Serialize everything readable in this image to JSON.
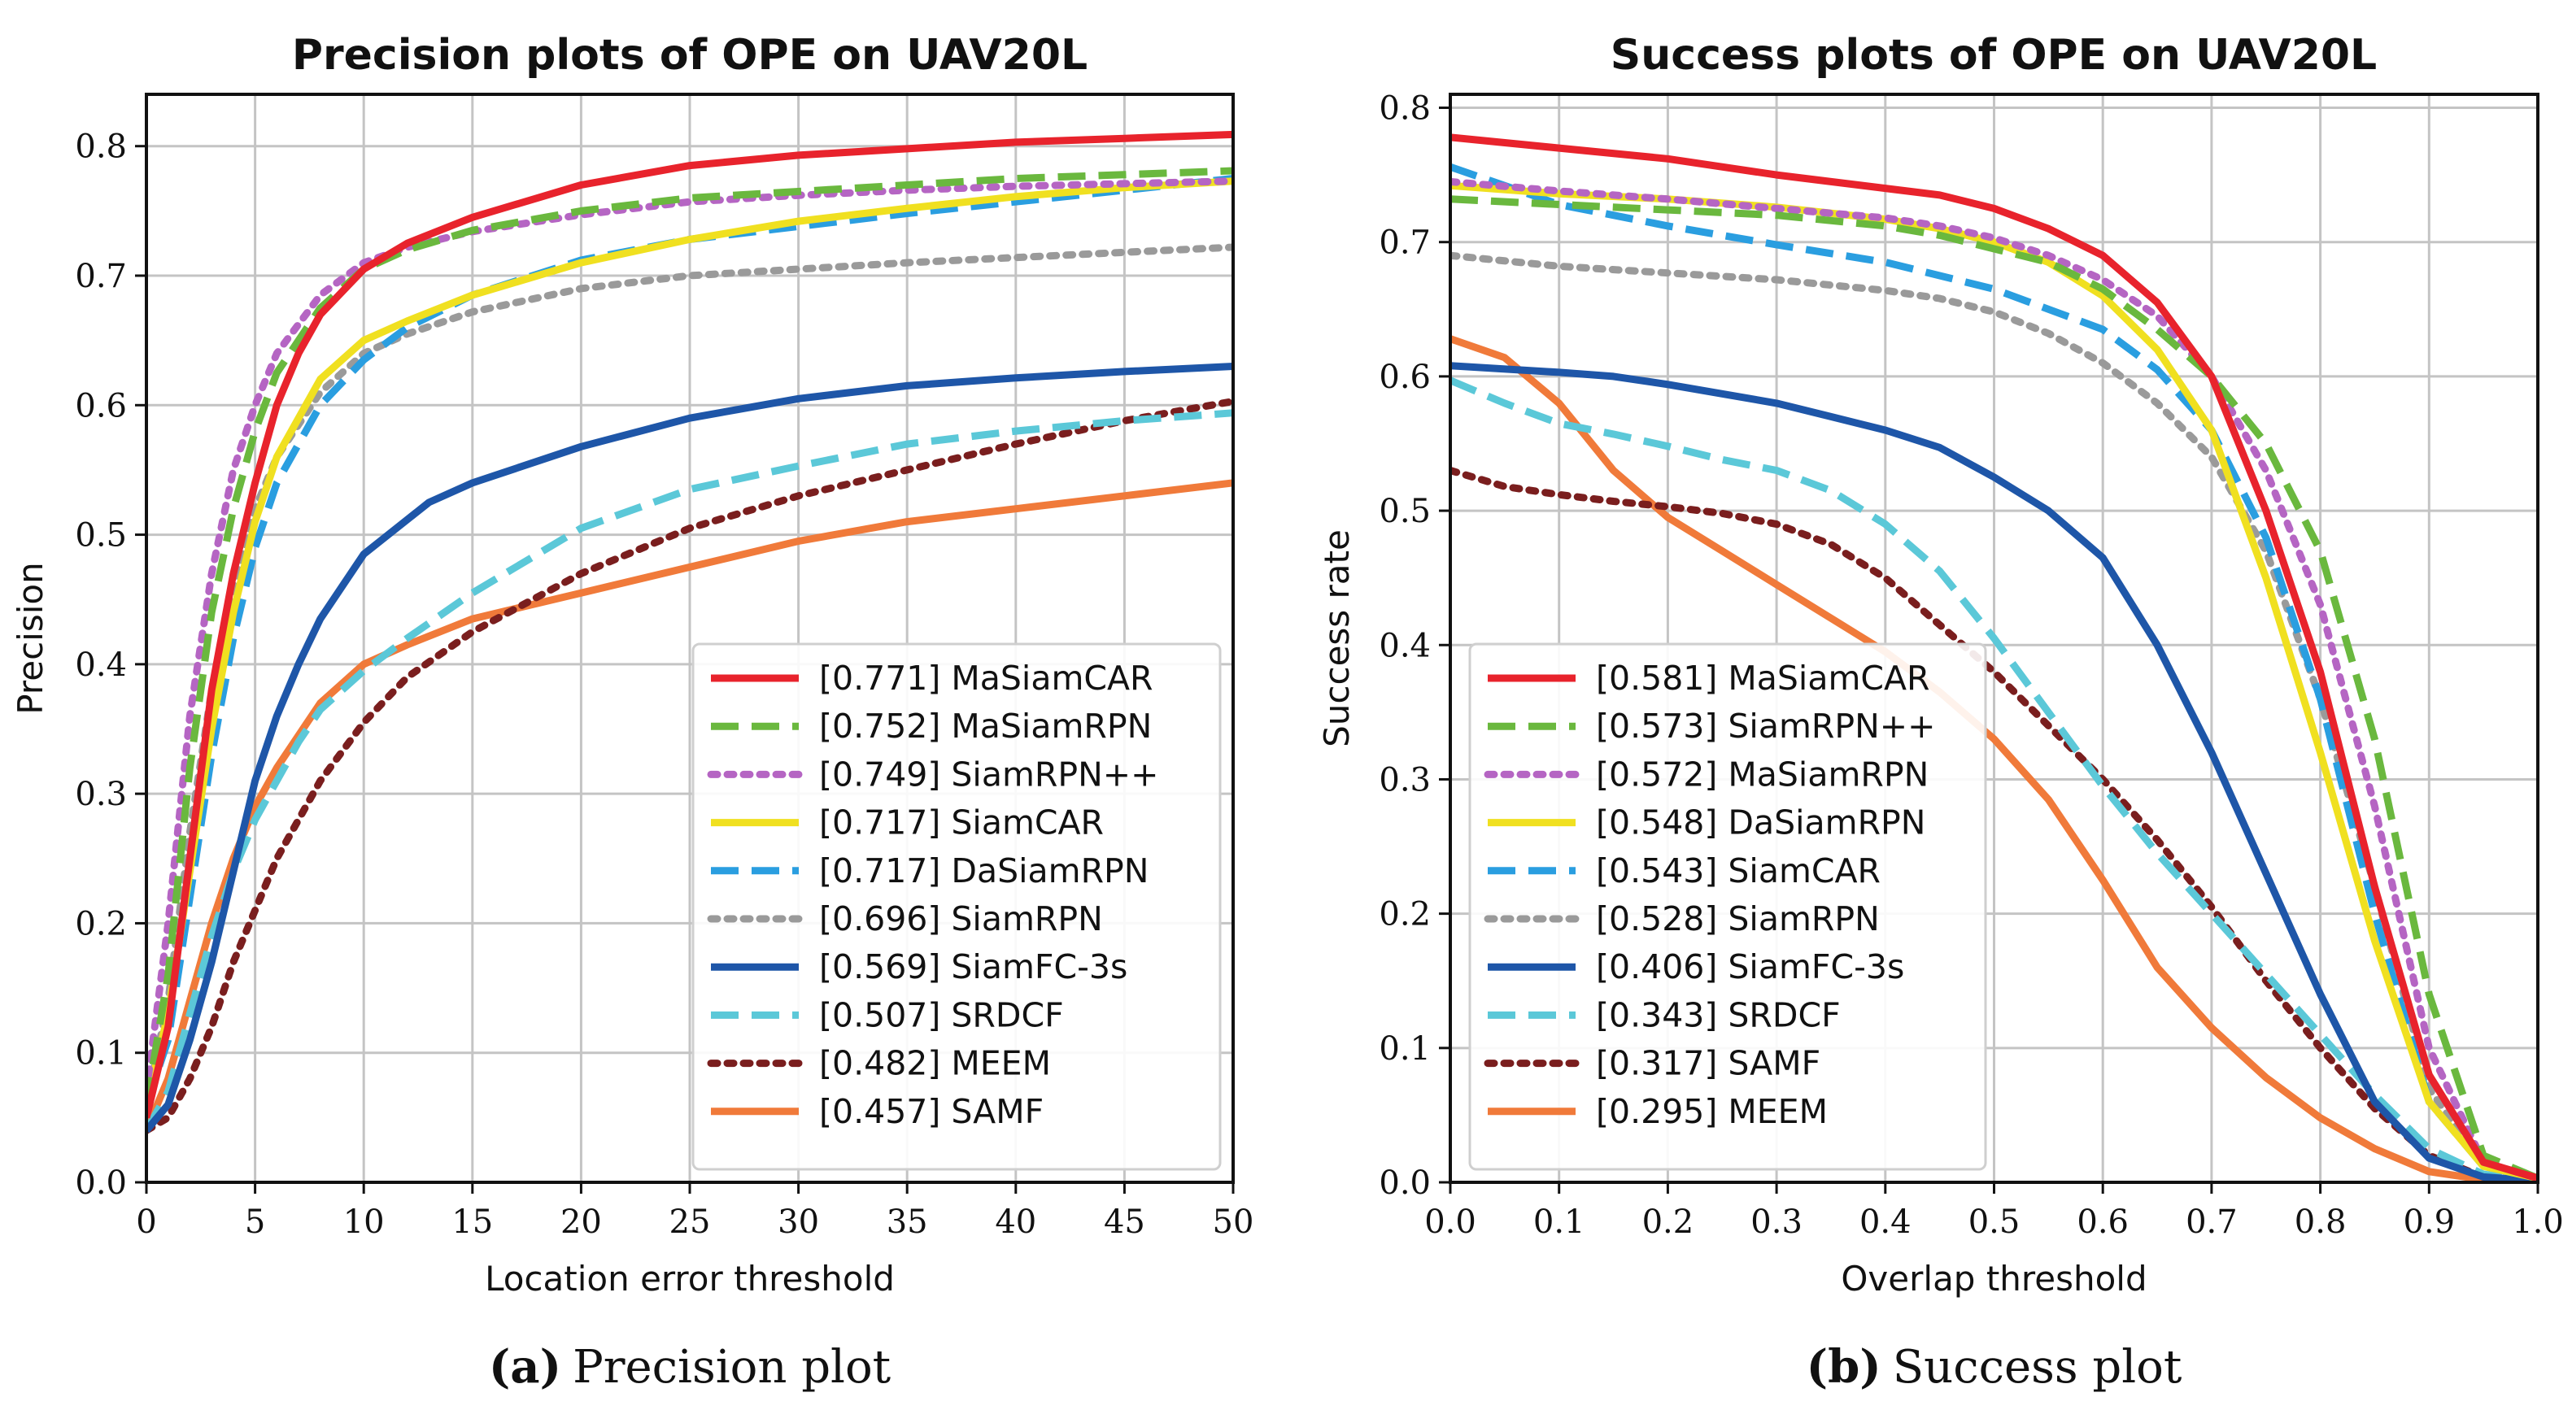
{
  "chart_data": [
    {
      "type": "line",
      "title": "Precision plots of OPE on UAV20L",
      "xlabel": "Location error threshold",
      "ylabel": "Precision",
      "xlim": [
        0,
        50
      ],
      "ylim": [
        0,
        0.84
      ],
      "xticks": [
        "0",
        "5",
        "10",
        "15",
        "20",
        "25",
        "30",
        "35",
        "40",
        "45",
        "50"
      ],
      "yticks": [
        "0.0",
        "0.1",
        "0.2",
        "0.3",
        "0.4",
        "0.5",
        "0.6",
        "0.7",
        "0.8"
      ],
      "grid": true,
      "legend_position": "lower-right",
      "caption_letter": "(a)",
      "caption_text": "Precision plot",
      "series": [
        {
          "name": "MaSiamCAR",
          "legend": "[0.771] MaSiamCAR",
          "color": "#e8232c",
          "dash": "solid",
          "x": [
            0,
            1,
            2,
            3,
            4,
            5,
            6,
            7,
            8,
            10,
            12,
            15,
            20,
            25,
            30,
            35,
            40,
            45,
            50
          ],
          "y": [
            0.05,
            0.12,
            0.25,
            0.38,
            0.47,
            0.54,
            0.6,
            0.64,
            0.67,
            0.705,
            0.725,
            0.745,
            0.77,
            0.785,
            0.793,
            0.798,
            0.803,
            0.806,
            0.809
          ]
        },
        {
          "name": "MaSiamRPN",
          "legend": "[0.752] MaSiamRPN",
          "color": "#6ab83e",
          "dash": "dashed",
          "x": [
            0,
            1,
            2,
            3,
            4,
            5,
            6,
            8,
            10,
            12,
            15,
            20,
            25,
            30,
            35,
            40,
            45,
            50
          ],
          "y": [
            0.06,
            0.16,
            0.32,
            0.44,
            0.52,
            0.58,
            0.625,
            0.675,
            0.705,
            0.72,
            0.735,
            0.75,
            0.76,
            0.765,
            0.77,
            0.775,
            0.778,
            0.781
          ]
        },
        {
          "name": "SiamRPN++",
          "legend": "[0.749] SiamRPN++",
          "color": "#b565c3",
          "dash": "dotted",
          "x": [
            0,
            1,
            2,
            3,
            4,
            5,
            6,
            8,
            10,
            12,
            15,
            20,
            25,
            30,
            35,
            40,
            45,
            50
          ],
          "y": [
            0.07,
            0.2,
            0.36,
            0.47,
            0.55,
            0.6,
            0.64,
            0.685,
            0.71,
            0.722,
            0.734,
            0.747,
            0.757,
            0.762,
            0.766,
            0.769,
            0.771,
            0.773
          ]
        },
        {
          "name": "SiamCAR",
          "legend": "[0.717] SiamCAR",
          "color": "#f0e020",
          "dash": "solid",
          "x": [
            0,
            1,
            2,
            3,
            4,
            5,
            6,
            8,
            10,
            12,
            15,
            20,
            25,
            30,
            35,
            40,
            45,
            50
          ],
          "y": [
            0.06,
            0.13,
            0.24,
            0.35,
            0.44,
            0.51,
            0.56,
            0.62,
            0.65,
            0.665,
            0.685,
            0.71,
            0.728,
            0.742,
            0.752,
            0.761,
            0.768,
            0.773
          ]
        },
        {
          "name": "DaSiamRPN",
          "legend": "[0.717] DaSiamRPN",
          "color": "#2a9ee0",
          "dash": "dashed",
          "x": [
            0,
            1,
            2,
            3,
            4,
            5,
            6,
            8,
            10,
            12,
            15,
            20,
            25,
            30,
            35,
            40,
            45,
            50
          ],
          "y": [
            0.06,
            0.11,
            0.22,
            0.33,
            0.42,
            0.49,
            0.54,
            0.6,
            0.635,
            0.66,
            0.685,
            0.712,
            0.728,
            0.738,
            0.748,
            0.757,
            0.766,
            0.775
          ]
        },
        {
          "name": "SiamRPN",
          "legend": "[0.696] SiamRPN",
          "color": "#9a9a9a",
          "dash": "dotted",
          "x": [
            0,
            1,
            2,
            3,
            4,
            5,
            6,
            8,
            10,
            12,
            15,
            20,
            25,
            30,
            35,
            40,
            45,
            50
          ],
          "y": [
            0.06,
            0.14,
            0.27,
            0.38,
            0.46,
            0.52,
            0.56,
            0.61,
            0.64,
            0.655,
            0.672,
            0.69,
            0.7,
            0.705,
            0.71,
            0.714,
            0.718,
            0.722
          ]
        },
        {
          "name": "SiamFC-3s",
          "legend": "[0.569] SiamFC-3s",
          "color": "#1e56a8",
          "dash": "solid",
          "x": [
            0,
            1,
            2,
            3,
            4,
            5,
            6,
            7,
            8,
            10,
            13,
            15,
            20,
            25,
            30,
            35,
            40,
            45,
            50
          ],
          "y": [
            0.04,
            0.06,
            0.11,
            0.17,
            0.24,
            0.31,
            0.36,
            0.4,
            0.435,
            0.485,
            0.525,
            0.54,
            0.568,
            0.59,
            0.605,
            0.615,
            0.621,
            0.626,
            0.63
          ]
        },
        {
          "name": "SRDCF",
          "legend": "[0.507] SRDCF",
          "color": "#5bc8d8",
          "dash": "dashed",
          "x": [
            0,
            1,
            2,
            3,
            4,
            5,
            6,
            7,
            8,
            10,
            12,
            15,
            20,
            25,
            30,
            35,
            40,
            45,
            50
          ],
          "y": [
            0.04,
            0.07,
            0.13,
            0.19,
            0.24,
            0.28,
            0.31,
            0.34,
            0.365,
            0.395,
            0.42,
            0.455,
            0.505,
            0.535,
            0.553,
            0.57,
            0.58,
            0.588,
            0.594
          ]
        },
        {
          "name": "MEEM",
          "legend": "[0.482] MEEM",
          "color": "#7a1e1e",
          "dash": "dotted",
          "x": [
            0,
            1,
            2,
            3,
            4,
            5,
            6,
            8,
            10,
            12,
            15,
            20,
            25,
            30,
            35,
            40,
            45,
            50
          ],
          "y": [
            0.04,
            0.05,
            0.08,
            0.12,
            0.17,
            0.21,
            0.25,
            0.31,
            0.355,
            0.39,
            0.425,
            0.47,
            0.505,
            0.53,
            0.55,
            0.57,
            0.588,
            0.603
          ]
        },
        {
          "name": "SAMF",
          "legend": "[0.457] SAMF",
          "color": "#f07a3a",
          "dash": "solid",
          "x": [
            0,
            1,
            2,
            3,
            4,
            5,
            6,
            7,
            8,
            10,
            12,
            15,
            20,
            25,
            30,
            35,
            40,
            45,
            50
          ],
          "y": [
            0.04,
            0.08,
            0.14,
            0.2,
            0.25,
            0.29,
            0.32,
            0.345,
            0.37,
            0.4,
            0.415,
            0.435,
            0.455,
            0.475,
            0.495,
            0.51,
            0.52,
            0.53,
            0.54
          ]
        }
      ]
    },
    {
      "type": "line",
      "title": "Success plots of OPE on UAV20L",
      "xlabel": "Overlap threshold",
      "ylabel": "Success rate",
      "xlim": [
        0,
        1
      ],
      "ylim": [
        0,
        0.81
      ],
      "xticks": [
        "0.0",
        "0.1",
        "0.2",
        "0.3",
        "0.4",
        "0.5",
        "0.6",
        "0.7",
        "0.8",
        "0.9",
        "1.0"
      ],
      "yticks": [
        "0.0",
        "0.1",
        "0.2",
        "0.3",
        "0.4",
        "0.5",
        "0.6",
        "0.7",
        "0.8"
      ],
      "grid": true,
      "legend_position": "lower-left",
      "caption_letter": "(b)",
      "caption_text": "Success plot",
      "series": [
        {
          "name": "MaSiamCAR",
          "legend": "[0.581] MaSiamCAR",
          "color": "#e8232c",
          "dash": "solid",
          "x": [
            0,
            0.1,
            0.2,
            0.3,
            0.4,
            0.45,
            0.5,
            0.55,
            0.6,
            0.65,
            0.7,
            0.75,
            0.8,
            0.85,
            0.9,
            0.95,
            1.0
          ],
          "y": [
            0.778,
            0.77,
            0.762,
            0.75,
            0.74,
            0.735,
            0.725,
            0.71,
            0.69,
            0.655,
            0.6,
            0.5,
            0.38,
            0.22,
            0.08,
            0.015,
            0.003
          ]
        },
        {
          "name": "SiamRPN++",
          "legend": "[0.573] SiamRPN++",
          "color": "#6ab83e",
          "dash": "dashed",
          "x": [
            0,
            0.1,
            0.2,
            0.3,
            0.4,
            0.45,
            0.5,
            0.55,
            0.6,
            0.65,
            0.7,
            0.75,
            0.8,
            0.85,
            0.9,
            0.95,
            1.0
          ],
          "y": [
            0.732,
            0.728,
            0.724,
            0.72,
            0.712,
            0.705,
            0.695,
            0.685,
            0.665,
            0.635,
            0.6,
            0.55,
            0.47,
            0.33,
            0.14,
            0.02,
            0.003
          ]
        },
        {
          "name": "MaSiamRPN",
          "legend": "[0.572] MaSiamRPN",
          "color": "#b565c3",
          "dash": "dotted",
          "x": [
            0,
            0.1,
            0.2,
            0.3,
            0.4,
            0.45,
            0.5,
            0.55,
            0.6,
            0.65,
            0.7,
            0.75,
            0.8,
            0.85,
            0.9,
            0.95,
            1.0
          ],
          "y": [
            0.745,
            0.738,
            0.732,
            0.725,
            0.718,
            0.712,
            0.703,
            0.69,
            0.672,
            0.645,
            0.6,
            0.53,
            0.43,
            0.28,
            0.1,
            0.015,
            0.003
          ]
        },
        {
          "name": "DaSiamRPN",
          "legend": "[0.548] DaSiamRPN",
          "color": "#f0e020",
          "dash": "solid",
          "x": [
            0,
            0.1,
            0.2,
            0.3,
            0.4,
            0.45,
            0.5,
            0.55,
            0.6,
            0.65,
            0.7,
            0.75,
            0.8,
            0.85,
            0.9,
            0.95,
            1.0
          ],
          "y": [
            0.742,
            0.736,
            0.732,
            0.726,
            0.717,
            0.71,
            0.7,
            0.685,
            0.66,
            0.62,
            0.56,
            0.45,
            0.32,
            0.18,
            0.06,
            0.012,
            0.003
          ]
        },
        {
          "name": "SiamCAR",
          "legend": "[0.543] SiamCAR",
          "color": "#2a9ee0",
          "dash": "dashed",
          "x": [
            0,
            0.1,
            0.2,
            0.3,
            0.4,
            0.45,
            0.5,
            0.55,
            0.6,
            0.65,
            0.7,
            0.75,
            0.8,
            0.85,
            0.9,
            0.95,
            1.0
          ],
          "y": [
            0.756,
            0.728,
            0.712,
            0.698,
            0.685,
            0.675,
            0.665,
            0.65,
            0.635,
            0.605,
            0.56,
            0.48,
            0.36,
            0.2,
            0.06,
            0.012,
            0.003
          ]
        },
        {
          "name": "SiamRPN",
          "legend": "[0.528] SiamRPN",
          "color": "#9a9a9a",
          "dash": "dotted",
          "x": [
            0,
            0.1,
            0.2,
            0.3,
            0.4,
            0.45,
            0.5,
            0.55,
            0.6,
            0.65,
            0.7,
            0.75,
            0.8,
            0.85,
            0.9,
            0.95,
            1.0
          ],
          "y": [
            0.69,
            0.682,
            0.677,
            0.672,
            0.664,
            0.658,
            0.648,
            0.632,
            0.61,
            0.58,
            0.54,
            0.47,
            0.36,
            0.22,
            0.07,
            0.012,
            0.003
          ]
        },
        {
          "name": "SiamFC-3s",
          "legend": "[0.406] SiamFC-3s",
          "color": "#1e56a8",
          "dash": "solid",
          "x": [
            0,
            0.1,
            0.15,
            0.2,
            0.3,
            0.35,
            0.4,
            0.45,
            0.5,
            0.55,
            0.6,
            0.65,
            0.7,
            0.75,
            0.8,
            0.85,
            0.9,
            0.95,
            1.0
          ],
          "y": [
            0.608,
            0.603,
            0.6,
            0.594,
            0.58,
            0.57,
            0.56,
            0.547,
            0.525,
            0.5,
            0.465,
            0.4,
            0.32,
            0.23,
            0.14,
            0.06,
            0.018,
            0.004,
            0.001
          ]
        },
        {
          "name": "SRDCF",
          "legend": "[0.343] SRDCF",
          "color": "#5bc8d8",
          "dash": "dashed",
          "x": [
            0,
            0.05,
            0.1,
            0.15,
            0.2,
            0.25,
            0.3,
            0.35,
            0.4,
            0.45,
            0.5,
            0.55,
            0.6,
            0.65,
            0.7,
            0.75,
            0.8,
            0.85,
            0.9,
            0.95,
            1.0
          ],
          "y": [
            0.597,
            0.58,
            0.565,
            0.557,
            0.548,
            0.538,
            0.53,
            0.515,
            0.49,
            0.455,
            0.405,
            0.35,
            0.295,
            0.245,
            0.2,
            0.155,
            0.11,
            0.065,
            0.025,
            0.006,
            0.001
          ]
        },
        {
          "name": "SAMF",
          "legend": "[0.317] SAMF",
          "color": "#7a1e1e",
          "dash": "dotted",
          "x": [
            0,
            0.05,
            0.1,
            0.15,
            0.2,
            0.25,
            0.3,
            0.35,
            0.4,
            0.45,
            0.5,
            0.55,
            0.6,
            0.65,
            0.7,
            0.75,
            0.8,
            0.85,
            0.9,
            0.95,
            1.0
          ],
          "y": [
            0.53,
            0.518,
            0.512,
            0.507,
            0.503,
            0.498,
            0.49,
            0.475,
            0.45,
            0.415,
            0.38,
            0.34,
            0.3,
            0.255,
            0.205,
            0.15,
            0.1,
            0.055,
            0.02,
            0.004,
            0.001
          ]
        },
        {
          "name": "MEEM",
          "legend": "[0.295] MEEM",
          "color": "#f07a3a",
          "dash": "solid",
          "x": [
            0,
            0.05,
            0.1,
            0.15,
            0.2,
            0.25,
            0.3,
            0.35,
            0.4,
            0.45,
            0.5,
            0.55,
            0.6,
            0.65,
            0.7,
            0.75,
            0.8,
            0.85,
            0.9,
            0.95,
            1.0
          ],
          "y": [
            0.628,
            0.614,
            0.58,
            0.53,
            0.495,
            0.47,
            0.445,
            0.42,
            0.395,
            0.365,
            0.33,
            0.285,
            0.225,
            0.16,
            0.115,
            0.078,
            0.048,
            0.025,
            0.008,
            0.002,
            0.0
          ]
        }
      ]
    }
  ]
}
